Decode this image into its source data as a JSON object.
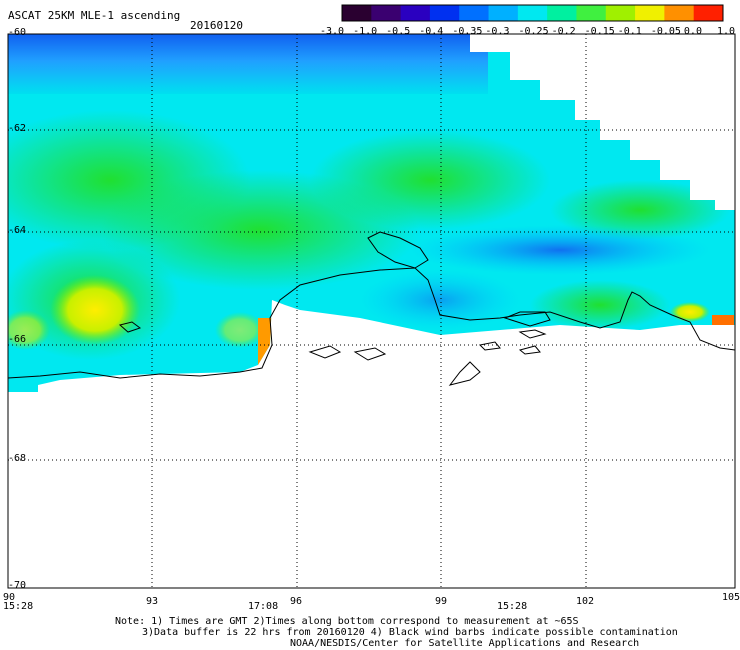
{
  "title": "ASCAT 25KM MLE-1 ascending",
  "date": "20160120",
  "colorbar": {
    "labels": [
      "-3.0",
      "-1.0",
      "-0.5",
      "-0.4",
      "-0.35",
      "-0.3",
      "-0.25",
      "-0.2",
      "-0.15",
      "-0.1",
      "-0.05",
      "0.0",
      "1.0"
    ],
    "colors": [
      "#2a0030",
      "#3a0070",
      "#2a00c0",
      "#0030f0",
      "#0070ff",
      "#00b0ff",
      "#00e8f0",
      "#00f0a0",
      "#40f040",
      "#a0f000",
      "#f0f000",
      "#ff9000",
      "#ff2000"
    ]
  },
  "map": {
    "lat_labels": [
      "-60",
      "-62",
      "-64",
      "-66",
      "-68",
      "-70"
    ],
    "lon_labels": [
      "90",
      "93",
      "96",
      "99",
      "102",
      "105"
    ],
    "time_labels": [
      "15:28",
      "17:08",
      "15:28"
    ]
  },
  "notes": {
    "line1": "Note: 1) Times are GMT 2)Times along bottom correspond to measurement at ~65S",
    "line2": "3)Data buffer is 22 hrs from 20160120 4) Black wind barbs indicate possible contamination",
    "line3": "NOAA/NESDIS/Center for Satellite Applications and Research"
  }
}
